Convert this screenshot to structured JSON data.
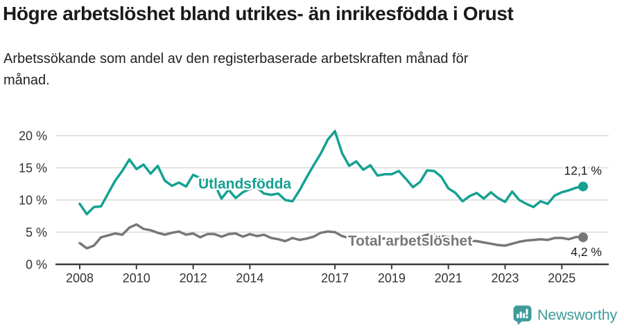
{
  "header": {
    "title": "Högre arbetslöshet bland utrikes- än inrikesfödda i Orust",
    "subtitle": "Arbetssökande som andel av den registerbaserade arbetskraften månad för månad."
  },
  "footer": {
    "brand": "Newsworthy"
  },
  "colors": {
    "accent_teal": "#14a191",
    "line_gray": "#77777a",
    "logo_teal": "#3f9b9b",
    "grid": "#d9d9d9",
    "axis": "#3a3a3a",
    "text_dark": "#1a1a1a",
    "tick_text": "#333333"
  },
  "chart_data": {
    "type": "line",
    "title": "Högre arbetslöshet bland utrikes- än inrikesfödda i Orust",
    "subtitle": "Arbetssökande som andel av den registerbaserade arbetskraften månad för månad.",
    "unit": "%",
    "x_start": 2008,
    "x_step": 0.25,
    "ylim": [
      0,
      22
    ],
    "grid": true,
    "legend_position": "inline-on-line",
    "y_ticks": [
      {
        "value": 0,
        "label": "0 %"
      },
      {
        "value": 5,
        "label": "5 %"
      },
      {
        "value": 10,
        "label": "10 %"
      },
      {
        "value": 15,
        "label": "15 %"
      },
      {
        "value": 20,
        "label": "20 %"
      }
    ],
    "x_ticks": [
      {
        "year": 2008,
        "label": "2008"
      },
      {
        "year": 2010,
        "label": "2010"
      },
      {
        "year": 2012,
        "label": "2012"
      },
      {
        "year": 2014,
        "label": "2014"
      },
      {
        "year": 2017,
        "label": "2017"
      },
      {
        "year": 2019,
        "label": "2019"
      },
      {
        "year": 2021,
        "label": "2021"
      },
      {
        "year": 2023,
        "label": "2023"
      },
      {
        "year": 2025,
        "label": "2025"
      }
    ],
    "series": [
      {
        "id": "utlandsfodda",
        "name": "Utlandsfödda",
        "color": "#14a191",
        "end_label": "12,1 %",
        "end_value": 12.1,
        "label_anchor": {
          "t": 2012.18,
          "v": 11.8
        },
        "values": [
          9.4,
          7.8,
          8.9,
          9.0,
          11.0,
          13.0,
          14.5,
          16.3,
          14.8,
          15.5,
          14.1,
          15.3,
          13.0,
          12.2,
          12.7,
          12.1,
          13.9,
          13.4,
          12.8,
          12.5,
          10.2,
          11.6,
          10.3,
          11.2,
          11.7,
          11.9,
          11.0,
          10.8,
          11.0,
          10.0,
          9.8,
          11.5,
          13.5,
          15.4,
          17.2,
          19.4,
          20.7,
          17.3,
          15.3,
          16.0,
          14.7,
          15.4,
          13.8,
          14.0,
          14.0,
          14.5,
          13.3,
          12.0,
          12.8,
          14.6,
          14.5,
          13.6,
          11.8,
          11.1,
          9.8,
          10.6,
          11.1,
          10.2,
          11.2,
          10.3,
          9.7,
          11.3,
          10.0,
          9.4,
          8.9,
          9.8,
          9.4,
          10.7,
          11.2,
          11.5,
          11.9,
          12.1
        ]
      },
      {
        "id": "total-arbetsloshet",
        "name": "Total arbetslöshet",
        "color": "#77777a",
        "end_label": "4,2 %",
        "end_value": 4.2,
        "label_anchor": {
          "t": 2017.46,
          "v": 2.9
        },
        "values": [
          3.3,
          2.5,
          2.9,
          4.2,
          4.5,
          4.8,
          4.6,
          5.7,
          6.2,
          5.5,
          5.3,
          4.9,
          4.6,
          4.9,
          5.1,
          4.6,
          4.8,
          4.2,
          4.7,
          4.7,
          4.3,
          4.7,
          4.8,
          4.3,
          4.7,
          4.4,
          4.6,
          4.1,
          3.9,
          3.6,
          4.1,
          3.8,
          4.0,
          4.3,
          4.9,
          5.1,
          5.0,
          4.4,
          4.1,
          4.2,
          4.1,
          4.2,
          4.0,
          4.0,
          3.9,
          4.0,
          3.9,
          4.0,
          4.2,
          4.6,
          4.6,
          4.4,
          4.2,
          4.0,
          3.8,
          3.7,
          3.6,
          3.4,
          3.2,
          3.0,
          2.9,
          3.2,
          3.5,
          3.7,
          3.8,
          3.9,
          3.8,
          4.1,
          4.1,
          3.9,
          4.25,
          4.2
        ]
      }
    ]
  }
}
